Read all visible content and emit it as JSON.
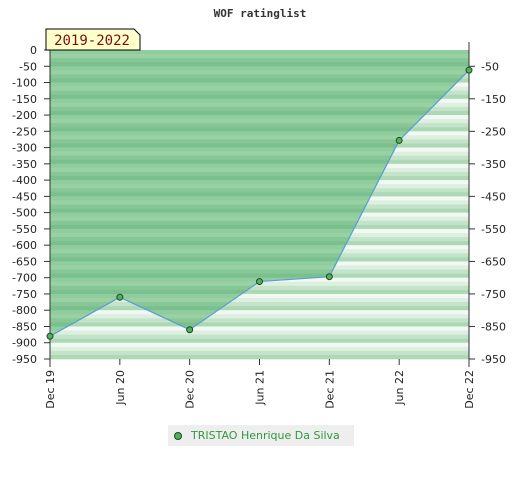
{
  "chart_data": {
    "type": "area",
    "title": "WOF ratinglist",
    "period_label": "2019-2022",
    "x": [
      "Dec 19",
      "Jun 20",
      "Dec 20",
      "Jun 21",
      "Dec 21",
      "Jun 22",
      "Dec 22"
    ],
    "series": [
      {
        "name": "TRISTAO Henrique Da Silva",
        "values": [
          -880,
          -760,
          -860,
          -712,
          -697,
          -278,
          -62
        ]
      }
    ],
    "y_left": {
      "range": [
        -950,
        0
      ],
      "ticks": [
        "0",
        "-50",
        "-100",
        "-150",
        "-200",
        "-250",
        "-300",
        "-350",
        "-400",
        "-450",
        "-500",
        "-550",
        "-600",
        "-650",
        "-700",
        "-750",
        "-800",
        "-850",
        "-900",
        "-950"
      ]
    },
    "y_right": {
      "range": [
        -950,
        0
      ],
      "ticks": [
        "-50",
        "-150",
        "-250",
        "-350",
        "-450",
        "-550",
        "-650",
        "-750",
        "-850",
        "-950"
      ]
    },
    "legend_position": "bottom",
    "colors": {
      "line": "#5b9bd5",
      "fill": "#7ac08e",
      "marker": "#52b05c",
      "legend_text": "#2e9a3e",
      "badge_bg": "#ffffcc",
      "badge_text": "#7a1010"
    }
  }
}
